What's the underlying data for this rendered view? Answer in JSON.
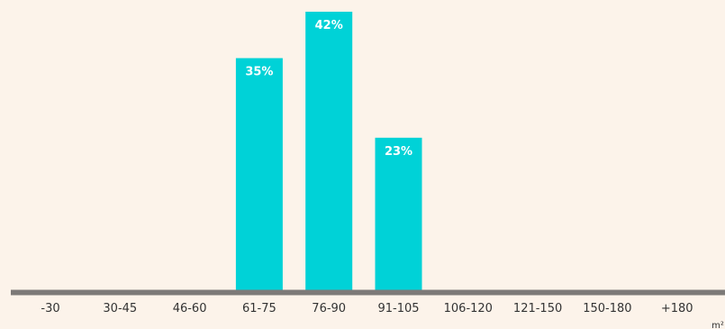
{
  "chart_data": {
    "type": "bar",
    "categories": [
      "-30",
      "30-45",
      "46-60",
      "61-75",
      "76-90",
      "91-105",
      "106-120",
      "121-150",
      "150-180",
      "+180"
    ],
    "values": [
      0,
      0,
      0,
      35,
      42,
      23,
      0,
      0,
      0,
      0
    ],
    "data_labels": [
      "",
      "",
      "",
      "35%",
      "42%",
      "23%",
      "",
      "",
      "",
      ""
    ],
    "unit_label": "m²",
    "ylim": [
      0,
      42
    ],
    "grid": false,
    "legend": "none"
  },
  "colors": {
    "background": "#fcf3ea",
    "bar": "#00d2d7",
    "baseline": "#7d7a78",
    "tick_text": "#333333",
    "data_label_text": "#ffffff"
  }
}
